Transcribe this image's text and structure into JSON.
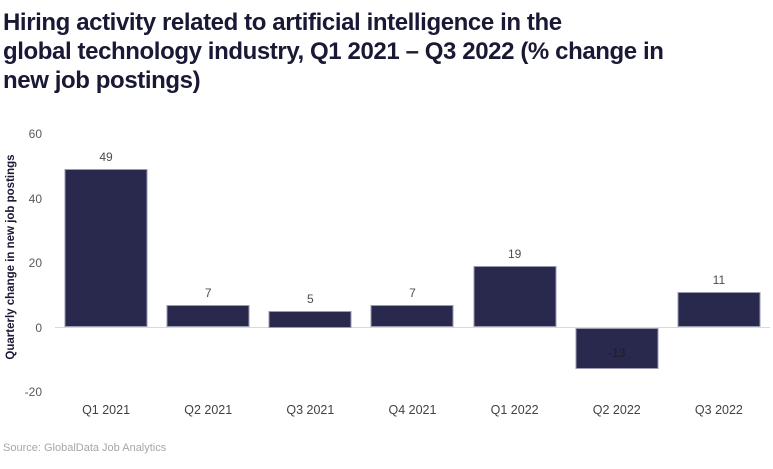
{
  "title_lines": [
    "Hiring activity related to artificial intelligence in the",
    "global technology industry, Q1 2021 – Q3 2022 (% change in",
    "new job postings)"
  ],
  "source": "Source: GlobalData Job Analytics",
  "chart_data": {
    "type": "bar",
    "title": "Hiring activity related to artificial intelligence in the global technology industry, Q1 2021 – Q3 2022 (% change in new job postings)",
    "categories": [
      "Q1 2021",
      "Q2 2021",
      "Q3 2021",
      "Q4 2021",
      "Q1 2022",
      "Q2 2022",
      "Q3 2022"
    ],
    "values": [
      49,
      7,
      5,
      7,
      19,
      -13,
      11
    ],
    "ylabel": "Quarterly change in new job postings",
    "ylim": [
      -20,
      60
    ],
    "yticks": [
      60,
      40,
      20,
      0,
      -20
    ],
    "grid": false,
    "legend_position": "none",
    "data_labels_shown": true
  },
  "colors": {
    "bar": "#29294d",
    "bar_border": "#9a9ab0",
    "title": "#191935",
    "tick_label": "#595959",
    "data_label": "#4d4d4d",
    "negative_data_label": "#1f1f1f",
    "x_label": "#424242",
    "zero_line": "#d9d9d9",
    "source": "#a6a6a6",
    "background": "#ffffff"
  }
}
